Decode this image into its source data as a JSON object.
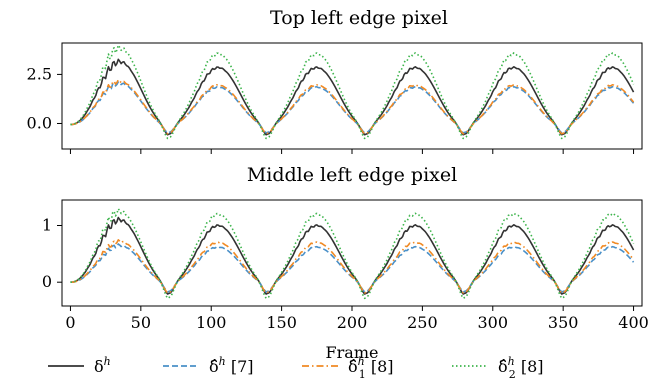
{
  "chart_data": [
    {
      "type": "line",
      "title": "Top left edge pixel",
      "xlim": [
        -6,
        406
      ],
      "ylim": [
        -1.3,
        4.1
      ],
      "xticks": [
        0,
        50,
        100,
        150,
        200,
        250,
        300,
        350,
        400
      ],
      "yticks": [
        0.0,
        2.5
      ],
      "ytick_labels": [
        "0.0",
        "2.5"
      ],
      "x_tick_labels_shown": false,
      "grid": false,
      "series": [
        {
          "name": "δ^h",
          "color": "#333333",
          "style": "solid",
          "period": 70,
          "base": -0.05,
          "peak": 2.9,
          "peak_first": 3.2,
          "trough": -0.55,
          "trough_first": -0.7
        },
        {
          "name": "δ̂^h [7]",
          "color": "#4a90c8",
          "style": "dashed",
          "period": 70,
          "base": -0.05,
          "peak": 1.9,
          "peak_first": 2.1,
          "trough": -0.45,
          "trough_first": -0.6
        },
        {
          "name": "δ̂₁^h [8]",
          "color": "#f08a24",
          "style": "dashdot",
          "period": 70,
          "base": -0.05,
          "peak": 2.0,
          "peak_first": 2.2,
          "trough": -0.5,
          "trough_first": -0.65
        },
        {
          "name": "δ̂₂^h [8]",
          "color": "#3cb44b",
          "style": "dotted",
          "period": 70,
          "base": -0.05,
          "peak": 3.6,
          "peak_first": 3.9,
          "trough": -0.75,
          "trough_first": -0.9
        }
      ]
    },
    {
      "type": "line",
      "title": "Middle left edge pixel",
      "xlabel": "Frame",
      "xlim": [
        -6,
        406
      ],
      "ylim": [
        -0.42,
        1.45
      ],
      "xticks": [
        0,
        50,
        100,
        150,
        200,
        250,
        300,
        350,
        400
      ],
      "yticks": [
        0,
        1
      ],
      "ytick_labels": [
        "0",
        "1"
      ],
      "x_tick_labels_shown": true,
      "grid": false,
      "series": [
        {
          "name": "δ^h",
          "color": "#333333",
          "style": "solid",
          "period": 70,
          "base": 0.0,
          "peak": 1.0,
          "peak_first": 1.1,
          "trough": -0.22,
          "trough_first": -0.35
        },
        {
          "name": "δ̂^h [7]",
          "color": "#4a90c8",
          "style": "dashed",
          "period": 70,
          "base": 0.0,
          "peak": 0.62,
          "peak_first": 0.65,
          "trough": -0.18,
          "trough_first": -0.3
        },
        {
          "name": "δ̂₁^h [8]",
          "color": "#f08a24",
          "style": "dashdot",
          "period": 70,
          "base": 0.0,
          "peak": 0.7,
          "peak_first": 0.72,
          "trough": -0.2,
          "trough_first": -0.32
        },
        {
          "name": "δ̂₂^h [8]",
          "color": "#3cb44b",
          "style": "dotted",
          "period": 70,
          "base": 0.0,
          "peak": 1.2,
          "peak_first": 1.25,
          "trough": -0.3,
          "trough_first": -0.42
        }
      ]
    }
  ],
  "legend": {
    "placement": "bottom",
    "items": [
      {
        "label": "δ",
        "sup": "h",
        "suffix": "",
        "color": "#333333",
        "style": "solid"
      },
      {
        "label": "δ̂",
        "sup": "h",
        "suffix": " [7]",
        "color": "#4a90c8",
        "style": "dashed"
      },
      {
        "label": "δ̂",
        "sup": "h",
        "sub": "1",
        "suffix": " [8]",
        "color": "#f08a24",
        "style": "dashdot"
      },
      {
        "label": "δ̂",
        "sup": "h",
        "sub": "2",
        "suffix": " [8]",
        "color": "#3cb44b",
        "style": "dotted"
      }
    ]
  }
}
